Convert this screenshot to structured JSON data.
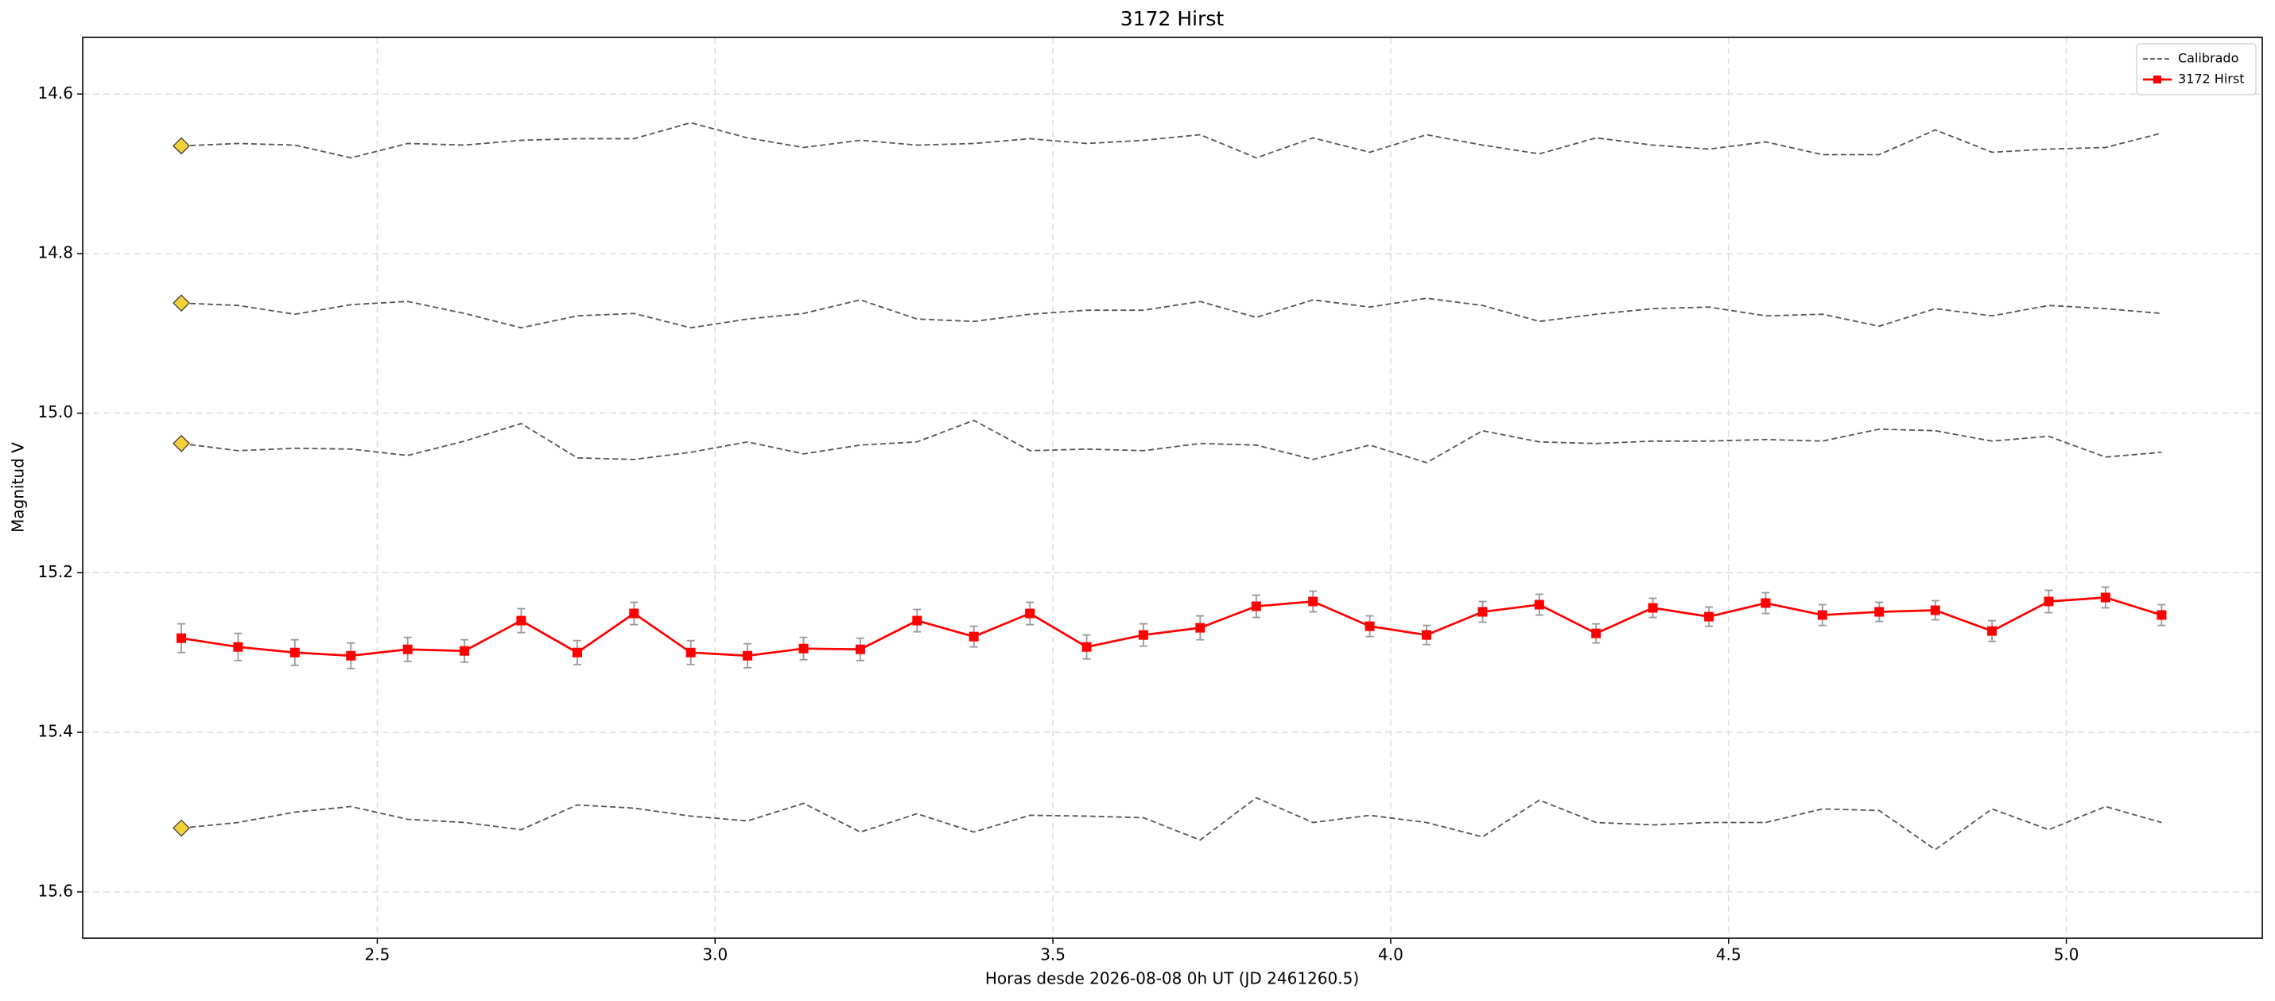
{
  "chart_data": {
    "type": "line",
    "title": "3172 Hirst",
    "x_label": "Horas desde 2026-08-08 0h UT (JD 2461260.5)",
    "y_label": "Magnitud V",
    "x": [
      2.21,
      2.294,
      2.378,
      2.461,
      2.545,
      2.629,
      2.713,
      2.796,
      2.88,
      2.964,
      3.048,
      3.131,
      3.215,
      3.299,
      3.383,
      3.466,
      3.55,
      3.634,
      3.718,
      3.801,
      3.885,
      3.969,
      4.053,
      4.136,
      4.22,
      4.304,
      4.388,
      4.471,
      4.555,
      4.639,
      4.723,
      4.806,
      4.89,
      4.974,
      5.058,
      5.141
    ],
    "xlim": [
      2.064,
      5.29
    ],
    "xticks": [
      2.5,
      {
        "value": 3,
        "label": "3.0"
      },
      3.5,
      {
        "value": 4,
        "label": "4.0"
      },
      4.5,
      {
        "value": 5,
        "label": "5.0"
      }
    ],
    "ylim": [
      14.529,
      15.658
    ],
    "invert_y": true,
    "yticks": [
      14.6,
      14.8,
      {
        "value": 15,
        "label": "15.0"
      },
      15.2,
      15.4,
      15.6
    ],
    "grid": true,
    "legend": "upper-right",
    "series": [
      {
        "name": "Calibrado",
        "color": "#555555",
        "linestyle": "dashed",
        "first_marker": "diamond",
        "first_marker_color": "#f2d13a",
        "values": [
          14.665,
          14.662,
          14.664,
          14.68,
          14.662,
          14.664,
          14.658,
          14.656,
          14.656,
          14.636,
          14.655,
          14.667,
          14.658,
          14.664,
          14.662,
          14.656,
          14.662,
          14.658,
          14.651,
          14.68,
          14.655,
          14.673,
          14.651,
          14.664,
          14.675,
          14.655,
          14.664,
          14.669,
          14.66,
          14.676,
          14.676,
          14.645,
          14.673,
          14.669,
          14.667,
          14.649
        ]
      },
      {
        "color": "#555555",
        "linestyle": "dashed",
        "first_marker": "diamond",
        "first_marker_color": "#f2d13a",
        "values": [
          14.862,
          14.865,
          14.876,
          14.864,
          14.86,
          14.875,
          14.893,
          14.878,
          14.875,
          14.893,
          14.882,
          14.875,
          14.858,
          14.882,
          14.885,
          14.876,
          14.871,
          14.871,
          14.86,
          14.88,
          14.858,
          14.867,
          14.856,
          14.865,
          14.885,
          14.876,
          14.869,
          14.867,
          14.878,
          14.876,
          14.891,
          14.869,
          14.878,
          14.865,
          14.869,
          14.875
        ]
      },
      {
        "color": "#555555",
        "linestyle": "dashed",
        "first_marker": "diamond",
        "first_marker_color": "#f2d13a",
        "values": [
          15.038,
          15.047,
          15.044,
          15.045,
          15.053,
          15.035,
          15.013,
          15.056,
          15.058,
          15.049,
          15.036,
          15.051,
          15.04,
          15.036,
          15.009,
          15.047,
          15.045,
          15.047,
          15.038,
          15.04,
          15.058,
          15.04,
          15.062,
          15.022,
          15.036,
          15.038,
          15.035,
          15.035,
          15.033,
          15.035,
          15.02,
          15.022,
          15.035,
          15.029,
          15.055,
          15.049
        ]
      },
      {
        "color": "#555555",
        "linestyle": "dashed",
        "first_marker": "diamond",
        "first_marker_color": "#f2d13a",
        "values": [
          15.52,
          15.513,
          15.5,
          15.493,
          15.509,
          15.513,
          15.522,
          15.491,
          15.495,
          15.505,
          15.511,
          15.489,
          15.525,
          15.502,
          15.525,
          15.504,
          15.505,
          15.507,
          15.535,
          15.482,
          15.513,
          15.504,
          15.513,
          15.531,
          15.485,
          15.513,
          15.516,
          15.513,
          15.513,
          15.496,
          15.498,
          15.547,
          15.496,
          15.522,
          15.493,
          15.513
        ]
      },
      {
        "name": "3172 Hirst",
        "color": "#ff0000",
        "linestyle": "solid",
        "marker": "square",
        "error_color": "#999999",
        "values": [
          15.282,
          15.293,
          15.3,
          15.304,
          15.296,
          15.298,
          15.26,
          15.3,
          15.251,
          15.3,
          15.304,
          15.295,
          15.296,
          15.26,
          15.28,
          15.251,
          15.293,
          15.278,
          15.269,
          15.242,
          15.236,
          15.267,
          15.278,
          15.249,
          15.24,
          15.276,
          15.244,
          15.255,
          15.238,
          15.253,
          15.249,
          15.247,
          15.273,
          15.236,
          15.231,
          15.253
        ],
        "errors": [
          0.018,
          0.017,
          0.016,
          0.016,
          0.015,
          0.014,
          0.015,
          0.015,
          0.014,
          0.015,
          0.015,
          0.014,
          0.014,
          0.014,
          0.013,
          0.014,
          0.015,
          0.014,
          0.015,
          0.014,
          0.013,
          0.013,
          0.012,
          0.013,
          0.013,
          0.012,
          0.012,
          0.012,
          0.013,
          0.013,
          0.012,
          0.012,
          0.013,
          0.014,
          0.013,
          0.013
        ]
      }
    ]
  }
}
